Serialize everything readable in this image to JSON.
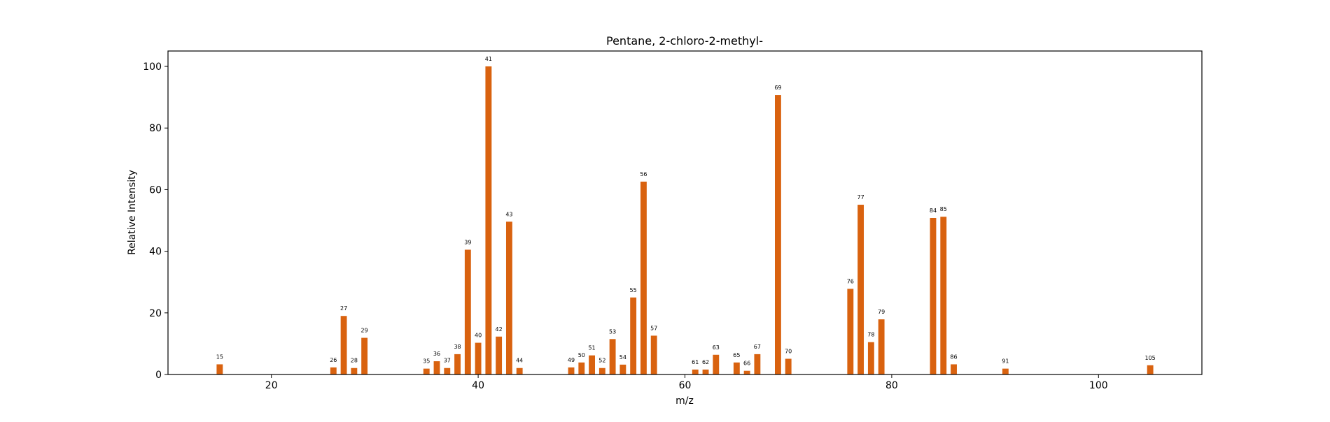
{
  "chart_data": {
    "type": "bar",
    "title": "Pentane, 2-chloro-2-methyl-",
    "xlabel": "m/z",
    "ylabel": "Relative Intensity",
    "xlim": [
      10,
      110
    ],
    "ylim": [
      0,
      105
    ],
    "x_ticks": [
      20,
      40,
      60,
      80,
      100
    ],
    "y_ticks": [
      0,
      20,
      40,
      60,
      80,
      100
    ],
    "grid": false,
    "bar_color": "#d9620f",
    "x": [
      15,
      26,
      27,
      28,
      29,
      35,
      36,
      37,
      38,
      39,
      40,
      41,
      42,
      43,
      44,
      49,
      50,
      51,
      52,
      53,
      54,
      55,
      56,
      57,
      61,
      62,
      63,
      65,
      66,
      67,
      69,
      70,
      76,
      77,
      78,
      79,
      84,
      85,
      86,
      91,
      105
    ],
    "values": [
      3.3,
      2.3,
      19,
      2.1,
      11.9,
      1.9,
      4.3,
      2.1,
      6.6,
      40.5,
      10.3,
      100,
      12.3,
      49.6,
      2.1,
      2.3,
      3.9,
      6.2,
      2.1,
      11.5,
      3.2,
      25,
      62.6,
      12.6,
      1.6,
      1.6,
      6.4,
      3.9,
      1.2,
      6.6,
      90.7,
      5.1,
      27.8,
      55.1,
      10.5,
      17.9,
      50.8,
      51.2,
      3.3,
      1.9,
      3
    ]
  }
}
